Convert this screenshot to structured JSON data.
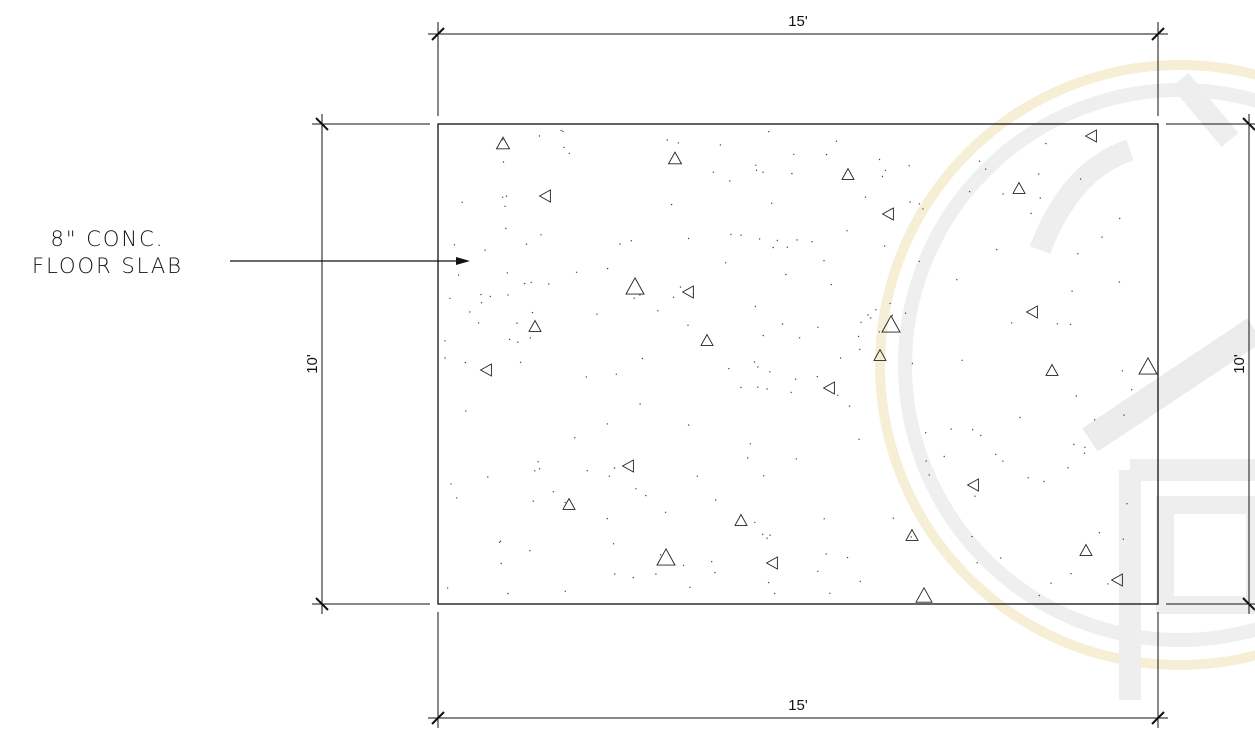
{
  "slab": {
    "callout_line1": "8\" CONC.",
    "callout_line2": "FLOOR SLAB"
  },
  "dimensions": {
    "top": "15'",
    "bottom": "15'",
    "left": "10'",
    "right": "10'"
  },
  "colors": {
    "line": "#111111",
    "watermark": "#e9e9e9",
    "watermark_accent": "#f4e9c8"
  },
  "icons": {
    "aggregate": "triangle-aggregate-icon",
    "speckle": "sand-speckle-dot",
    "watermark": "house-seal-watermark"
  }
}
